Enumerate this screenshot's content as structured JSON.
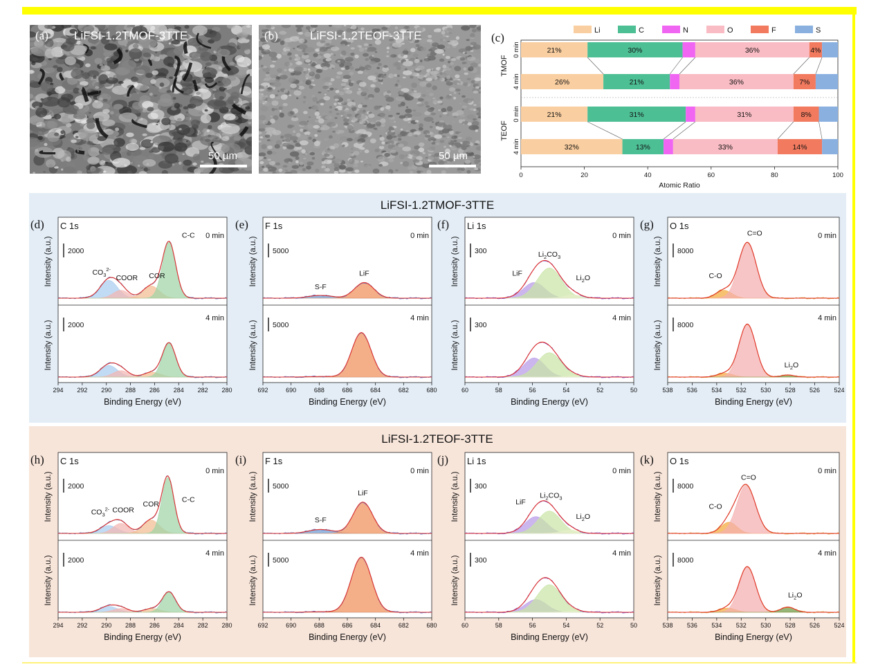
{
  "sem": [
    {
      "panel": "(a)",
      "title": "LiFSI-1.2TMOF-3TTE",
      "scale": "50 µm"
    },
    {
      "panel": "(b)",
      "title": "LiFSI-1.2TEOF-3TTE",
      "scale": "50 µm"
    }
  ],
  "groups": [
    {
      "title": "LiFSI-1.2TMOF-3TTE",
      "bg": "#e4edf6"
    },
    {
      "title": "LiFSI-1.2TEOF-3TTE",
      "bg": "#f8e5da"
    }
  ],
  "colors": {
    "Li": "#f9cea0",
    "C": "#4dbf95",
    "N": "#f065f2",
    "O": "#f9bcc4",
    "F": "#f27a5f",
    "S": "#8ab0e0",
    "envelope": "#e0302a",
    "c_co3": "#a9cdf0",
    "c_coor": "#f3b6b2",
    "c_cor": "#f2bd92",
    "c_cc": "#9fd4a6",
    "f_sf": "#6d9bd3",
    "f_lif": "#f0905a",
    "li_lif": "#b89ae8",
    "li_co3": "#c9e4a6",
    "li_li2o": "#e6eec9",
    "o_co": "#f4a93c",
    "o_ceo": "#f4aeae",
    "o_li2o": "#6e9a45",
    "raw_c": "#5a7ec8",
    "raw_f": "#5b7ad1",
    "raw_li": "#7b55d6",
    "raw_o": "#e0a13b"
  },
  "chart_data": [
    {
      "type": "bar",
      "panel": "(c)",
      "orientation": "horizontal-stacked",
      "legend_position": "top",
      "elements": [
        "Li",
        "C",
        "N",
        "O",
        "F",
        "S"
      ],
      "groups": [
        "TMOF",
        "TEOF"
      ],
      "rows": [
        {
          "group": "TMOF",
          "label": "0 min",
          "values": [
            21,
            30,
            4,
            36,
            4,
            5
          ],
          "labels": [
            "21%",
            "30%",
            "",
            "36%",
            "4%",
            ""
          ]
        },
        {
          "group": "TMOF",
          "label": "4 min",
          "values": [
            26,
            21,
            3,
            36,
            7,
            7
          ],
          "labels": [
            "26%",
            "21%",
            "",
            "36%",
            "7%",
            ""
          ]
        },
        {
          "group": "TEOF",
          "label": "0 min",
          "values": [
            21,
            31,
            3,
            31,
            8,
            6
          ],
          "labels": [
            "21%",
            "31%",
            "",
            "31%",
            "8%",
            ""
          ]
        },
        {
          "group": "TEOF",
          "label": "4 min",
          "values": [
            32,
            13,
            3,
            33,
            14,
            5
          ],
          "labels": [
            "32%",
            "13%",
            "",
            "33%",
            "14%",
            ""
          ]
        }
      ],
      "xlabel": "Atomic Ratio",
      "xlim": [
        0,
        100
      ],
      "xticks": [
        "0",
        "20",
        "40",
        "60",
        "80",
        "100"
      ],
      "grid": false
    },
    {
      "type": "line",
      "panel": "(d)",
      "title": "C 1s",
      "group": "LiFSI-1.2TMOF-3TTE",
      "xlabel": "Binding Energy (eV)",
      "ylabel": "Intensity (a.u.)",
      "xlim": [
        294,
        280
      ],
      "xticks": [
        "294",
        "292",
        "290",
        "288",
        "286",
        "284",
        "282",
        "280"
      ],
      "top": {
        "time": "0 min",
        "scale": "2000",
        "max": 6.0,
        "components": [
          {
            "name": "CO3",
            "color_key": "c_co3",
            "center": 289.8,
            "fwhm": 1.7,
            "height": 1.6
          },
          {
            "name": "COOR",
            "color_key": "c_coor",
            "center": 288.8,
            "fwhm": 1.5,
            "height": 0.7
          },
          {
            "name": "COR",
            "color_key": "c_cor",
            "center": 286.3,
            "fwhm": 1.6,
            "height": 1.1
          },
          {
            "name": "C-C",
            "color_key": "c_cc",
            "center": 284.8,
            "fwhm": 1.3,
            "height": 5.0
          }
        ],
        "labels": [
          {
            "text": "CO32-",
            "main": "CO",
            "sub": "3",
            "sup": "2-",
            "x": 290.4,
            "y": 2.1
          },
          {
            "text": "COOR",
            "x": 288.3,
            "y": 1.6
          },
          {
            "text": "COR",
            "x": 285.8,
            "y": 1.8
          },
          {
            "text": "C-C",
            "x": 283.2,
            "y": 5.4
          }
        ]
      },
      "bottom": {
        "time": "4 min",
        "scale": "2000",
        "max": 6.0,
        "components": [
          {
            "name": "CO3",
            "color_key": "c_co3",
            "center": 289.8,
            "fwhm": 1.7,
            "height": 1.1
          },
          {
            "name": "COOR",
            "color_key": "c_coor",
            "center": 288.8,
            "fwhm": 1.5,
            "height": 0.6
          },
          {
            "name": "COR",
            "color_key": "c_cor",
            "center": 286.2,
            "fwhm": 1.6,
            "height": 0.45
          },
          {
            "name": "C-C",
            "color_key": "c_cc",
            "center": 284.8,
            "fwhm": 1.3,
            "height": 3.2
          }
        ],
        "labels": []
      }
    },
    {
      "type": "line",
      "panel": "(e)",
      "title": "F 1s",
      "group": "LiFSI-1.2TMOF-3TTE",
      "xlabel": "Binding Energy (eV)",
      "ylabel": "Intensity (a.u.)",
      "xlim": [
        692,
        680
      ],
      "xticks": [
        "692",
        "690",
        "688",
        "686",
        "684",
        "682",
        "680"
      ],
      "top": {
        "time": "0 min",
        "scale": "5000",
        "max": 6.0,
        "components": [
          {
            "name": "S-F",
            "color_key": "f_sf",
            "center": 687.9,
            "fwhm": 2.0,
            "height": 0.25
          },
          {
            "name": "LiF",
            "color_key": "f_lif",
            "center": 684.8,
            "fwhm": 1.6,
            "height": 1.4
          }
        ],
        "labels": [
          {
            "text": "S-F",
            "x": 687.9,
            "y": 0.8
          },
          {
            "text": "LiF",
            "x": 684.8,
            "y": 2.0
          }
        ]
      },
      "bottom": {
        "time": "4 min",
        "scale": "5000",
        "max": 6.0,
        "components": [
          {
            "name": "S-F",
            "color_key": "f_sf",
            "center": 687.9,
            "fwhm": 2.0,
            "height": 0.05
          },
          {
            "name": "LiF",
            "color_key": "f_lif",
            "center": 685.0,
            "fwhm": 1.6,
            "height": 4.2
          }
        ],
        "labels": []
      }
    },
    {
      "type": "line",
      "panel": "(f)",
      "title": "Li 1s",
      "group": "LiFSI-1.2TMOF-3TTE",
      "xlabel": "Binding Energy (eV)",
      "ylabel": "Intensity (a.u.)",
      "xlim": [
        60,
        50
      ],
      "xticks": [
        "60",
        "58",
        "56",
        "54",
        "52",
        "50"
      ],
      "top": {
        "time": "0 min",
        "scale": "300",
        "max": 6.0,
        "components": [
          {
            "name": "LiF",
            "color_key": "li_lif",
            "center": 55.9,
            "fwhm": 1.5,
            "height": 1.4
          },
          {
            "name": "Li2CO3",
            "color_key": "li_co3",
            "center": 55.0,
            "fwhm": 1.7,
            "height": 2.7
          },
          {
            "name": "Li2O",
            "color_key": "li_li2o",
            "center": 53.6,
            "fwhm": 1.2,
            "height": 0.3
          }
        ],
        "labels": [
          {
            "text": "LiF",
            "x": 56.9,
            "y": 2.0
          },
          {
            "text": "Li2CO3",
            "main": "Li",
            "sub": "2",
            "after": "CO",
            "sub2": "3",
            "x": 55.0,
            "y": 3.7
          },
          {
            "text": "Li2O",
            "main": "Li",
            "sub": "2",
            "after": "O",
            "x": 53.0,
            "y": 1.6
          }
        ]
      },
      "bottom": {
        "time": "4 min",
        "scale": "300",
        "max": 6.0,
        "components": [
          {
            "name": "LiF",
            "color_key": "li_lif",
            "center": 55.9,
            "fwhm": 1.5,
            "height": 1.8
          },
          {
            "name": "Li2CO3",
            "color_key": "li_co3",
            "center": 55.0,
            "fwhm": 1.7,
            "height": 2.3
          },
          {
            "name": "Li2O",
            "color_key": "li_li2o",
            "center": 53.6,
            "fwhm": 1.2,
            "height": 0.1
          }
        ],
        "labels": []
      }
    },
    {
      "type": "line",
      "panel": "(g)",
      "title": "O 1s",
      "group": "LiFSI-1.2TMOF-3TTE",
      "xlabel": "Binding Energy (eV)",
      "ylabel": "Intensity (a.u.)",
      "xlim": [
        538,
        524
      ],
      "xticks": [
        "538",
        "536",
        "534",
        "532",
        "530",
        "528",
        "526",
        "524"
      ],
      "top": {
        "time": "0 min",
        "scale": "8000",
        "max": 6.0,
        "components": [
          {
            "name": "C-O",
            "color_key": "o_co",
            "center": 533.4,
            "fwhm": 1.5,
            "height": 0.7
          },
          {
            "name": "C=O",
            "color_key": "o_ceo",
            "center": 531.5,
            "fwhm": 1.7,
            "height": 5.0
          }
        ],
        "labels": [
          {
            "text": "C-O",
            "x": 534.1,
            "y": 1.8
          },
          {
            "text": "C=O",
            "x": 530.9,
            "y": 5.6
          }
        ]
      },
      "bottom": {
        "time": "4 min",
        "scale": "8000",
        "max": 6.0,
        "components": [
          {
            "name": "C-O",
            "color_key": "o_co",
            "center": 533.3,
            "fwhm": 1.5,
            "height": 0.35
          },
          {
            "name": "C=O",
            "color_key": "o_ceo",
            "center": 531.5,
            "fwhm": 1.6,
            "height": 5.0
          },
          {
            "name": "Li2O",
            "color_key": "o_li2o",
            "center": 528.2,
            "fwhm": 1.2,
            "height": 0.2
          }
        ],
        "labels": [
          {
            "text": "Li2O",
            "main": "Li",
            "sub": "2",
            "after": "O",
            "x": 527.9,
            "y": 0.9
          }
        ]
      }
    },
    {
      "type": "line",
      "panel": "(h)",
      "title": "C 1s",
      "group": "LiFSI-1.2TEOF-3TTE",
      "xlabel": "Binding Energy (eV)",
      "ylabel": "Intensity (a.u.)",
      "xlim": [
        294,
        280
      ],
      "xticks": [
        "294",
        "292",
        "290",
        "288",
        "286",
        "284",
        "282",
        "280"
      ],
      "top": {
        "time": "0 min",
        "scale": "2000",
        "max": 6.0,
        "components": [
          {
            "name": "CO3",
            "color_key": "c_co3",
            "center": 289.8,
            "fwhm": 1.7,
            "height": 0.7
          },
          {
            "name": "COOR",
            "color_key": "c_coor",
            "center": 288.8,
            "fwhm": 1.5,
            "height": 0.9
          },
          {
            "name": "COR",
            "color_key": "c_cor",
            "center": 286.3,
            "fwhm": 1.6,
            "height": 1.2
          },
          {
            "name": "C-C",
            "color_key": "c_cc",
            "center": 284.9,
            "fwhm": 1.2,
            "height": 5.0
          }
        ],
        "labels": [
          {
            "text": "CO32-",
            "main": "CO",
            "sub": "3",
            "sup": "2-",
            "x": 290.5,
            "y": 1.7
          },
          {
            "text": "COOR",
            "x": 288.6,
            "y": 1.9
          },
          {
            "text": "COR",
            "x": 286.3,
            "y": 2.4
          },
          {
            "text": "C-C",
            "x": 283.2,
            "y": 2.8
          }
        ]
      },
      "bottom": {
        "time": "4 min",
        "scale": "2000",
        "max": 6.0,
        "components": [
          {
            "name": "CO3",
            "color_key": "c_co3",
            "center": 289.8,
            "fwhm": 1.7,
            "height": 0.55
          },
          {
            "name": "COOR",
            "color_key": "c_coor",
            "center": 288.8,
            "fwhm": 1.5,
            "height": 0.35
          },
          {
            "name": "COR",
            "color_key": "c_cor",
            "center": 286.2,
            "fwhm": 1.6,
            "height": 0.35
          },
          {
            "name": "C-C",
            "color_key": "c_cc",
            "center": 284.8,
            "fwhm": 1.3,
            "height": 1.9
          }
        ],
        "labels": []
      }
    },
    {
      "type": "line",
      "panel": "(i)",
      "title": "F 1s",
      "group": "LiFSI-1.2TEOF-3TTE",
      "xlabel": "Binding Energy (eV)",
      "ylabel": "Intensity (a.u.)",
      "xlim": [
        692,
        680
      ],
      "xticks": [
        "692",
        "690",
        "688",
        "686",
        "684",
        "682",
        "680"
      ],
      "top": {
        "time": "0 min",
        "scale": "5000",
        "max": 6.0,
        "components": [
          {
            "name": "S-F",
            "color_key": "f_sf",
            "center": 687.9,
            "fwhm": 2.0,
            "height": 0.35
          },
          {
            "name": "LiF",
            "color_key": "f_lif",
            "center": 684.9,
            "fwhm": 1.6,
            "height": 2.8
          }
        ],
        "labels": [
          {
            "text": "S-F",
            "x": 687.9,
            "y": 1.0
          },
          {
            "text": "LiF",
            "x": 684.9,
            "y": 3.4
          }
        ]
      },
      "bottom": {
        "time": "4 min",
        "scale": "5000",
        "max": 6.0,
        "components": [
          {
            "name": "S-F",
            "color_key": "f_sf",
            "center": 687.9,
            "fwhm": 2.0,
            "height": 0.05
          },
          {
            "name": "LiF",
            "color_key": "f_lif",
            "center": 685.0,
            "fwhm": 1.7,
            "height": 5.2
          }
        ],
        "labels": []
      }
    },
    {
      "type": "line",
      "panel": "(j)",
      "title": "Li 1s",
      "group": "LiFSI-1.2TEOF-3TTE",
      "xlabel": "Binding Energy (eV)",
      "ylabel": "Intensity (a.u.)",
      "xlim": [
        60,
        50
      ],
      "xticks": [
        "60",
        "58",
        "56",
        "54",
        "52",
        "50"
      ],
      "top": {
        "time": "0 min",
        "scale": "300",
        "max": 6.0,
        "components": [
          {
            "name": "LiF",
            "color_key": "li_lif",
            "center": 55.8,
            "fwhm": 1.5,
            "height": 1.5
          },
          {
            "name": "Li2CO3",
            "color_key": "li_co3",
            "center": 55.0,
            "fwhm": 1.6,
            "height": 2.0
          },
          {
            "name": "Li2O",
            "color_key": "li_li2o",
            "center": 53.8,
            "fwhm": 1.2,
            "height": 0.3
          }
        ],
        "labels": [
          {
            "text": "LiF",
            "x": 56.7,
            "y": 2.6
          },
          {
            "text": "Li2CO3",
            "main": "Li",
            "sub": "2",
            "after": "CO",
            "sub2": "3",
            "x": 54.9,
            "y": 3.2
          },
          {
            "text": "Li2O",
            "main": "Li",
            "sub": "2",
            "after": "O",
            "x": 53.0,
            "y": 1.3
          }
        ]
      },
      "bottom": {
        "time": "4 min",
        "scale": "300",
        "max": 6.0,
        "components": [
          {
            "name": "LiF",
            "color_key": "li_lif",
            "center": 55.8,
            "fwhm": 1.5,
            "height": 1.2
          },
          {
            "name": "Li2CO3",
            "color_key": "li_co3",
            "center": 55.0,
            "fwhm": 1.7,
            "height": 2.6
          },
          {
            "name": "Li2O",
            "color_key": "li_li2o",
            "center": 53.6,
            "fwhm": 1.2,
            "height": 0.1
          }
        ],
        "labels": []
      }
    },
    {
      "type": "line",
      "panel": "(k)",
      "title": "O 1s",
      "group": "LiFSI-1.2TEOF-3TTE",
      "xlabel": "Binding Energy (eV)",
      "ylabel": "Intensity (a.u.)",
      "xlim": [
        538,
        524
      ],
      "xticks": [
        "538",
        "536",
        "534",
        "532",
        "530",
        "528",
        "526",
        "524"
      ],
      "top": {
        "time": "0 min",
        "scale": "8000",
        "max": 6.0,
        "components": [
          {
            "name": "C-O",
            "color_key": "o_co",
            "center": 533.0,
            "fwhm": 1.5,
            "height": 1.0
          },
          {
            "name": "C=O",
            "color_key": "o_ceo",
            "center": 531.6,
            "fwhm": 1.8,
            "height": 4.3
          }
        ],
        "labels": [
          {
            "text": "C-O",
            "x": 534.1,
            "y": 2.2
          },
          {
            "text": "C=O",
            "x": 531.4,
            "y": 4.8
          }
        ]
      },
      "bottom": {
        "time": "4 min",
        "scale": "8000",
        "max": 6.0,
        "components": [
          {
            "name": "C-O",
            "color_key": "o_co",
            "center": 533.1,
            "fwhm": 1.5,
            "height": 0.4
          },
          {
            "name": "C=O",
            "color_key": "o_ceo",
            "center": 531.5,
            "fwhm": 1.6,
            "height": 4.3
          },
          {
            "name": "Li2O",
            "color_key": "o_li2o",
            "center": 528.2,
            "fwhm": 1.3,
            "height": 0.5
          }
        ],
        "labels": [
          {
            "text": "Li2O",
            "main": "Li",
            "sub": "2",
            "after": "O",
            "x": 527.6,
            "y": 1.4
          }
        ]
      }
    }
  ]
}
